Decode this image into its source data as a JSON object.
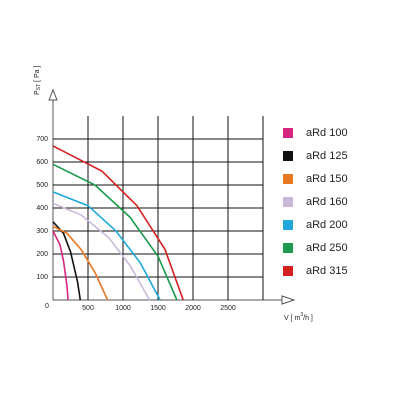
{
  "chart_data": {
    "type": "line",
    "y_label": {
      "main": "P",
      "sub": "ST",
      "unit": "[ Pa ]"
    },
    "x_label": {
      "main": "V [ m",
      "sup": "3",
      "unit": "/h ]"
    },
    "origin_label": "0",
    "xlim": [
      0,
      3000
    ],
    "ylim": [
      0,
      700
    ],
    "xticks": [
      500,
      1000,
      1500,
      2000,
      2500
    ],
    "xgrid": [
      500,
      1000,
      1500,
      2000,
      2500,
      3000
    ],
    "yticks": [
      100,
      200,
      300,
      400,
      500,
      600,
      700
    ],
    "grid": true,
    "series": [
      {
        "name": "aRd 100",
        "color": "#d6267f",
        "x": [
          0,
          100,
          150,
          200,
          215
        ],
        "values": [
          300,
          240,
          170,
          60,
          0
        ]
      },
      {
        "name": "aRd 125",
        "color": "#111111",
        "x": [
          0,
          150,
          250,
          350,
          390
        ],
        "values": [
          340,
          290,
          210,
          80,
          0
        ]
      },
      {
        "name": "aRd 150",
        "color": "#e87722",
        "x": [
          0,
          200,
          400,
          600,
          780
        ],
        "values": [
          320,
          290,
          220,
          120,
          0
        ]
      },
      {
        "name": "aRd 160",
        "color": "#c9b8d8",
        "x": [
          0,
          400,
          800,
          1100,
          1380
        ],
        "values": [
          420,
          370,
          270,
          150,
          0
        ]
      },
      {
        "name": "aRd 200",
        "color": "#1fa8dc",
        "x": [
          0,
          500,
          900,
          1250,
          1530
        ],
        "values": [
          470,
          410,
          300,
          160,
          0
        ]
      },
      {
        "name": "aRd 250",
        "color": "#1a9a4a",
        "x": [
          0,
          600,
          1100,
          1500,
          1770
        ],
        "values": [
          590,
          500,
          360,
          190,
          0
        ]
      },
      {
        "name": "aRd 315",
        "color": "#d42020",
        "x": [
          0,
          700,
          1200,
          1600,
          1860
        ],
        "values": [
          670,
          560,
          410,
          220,
          0
        ]
      }
    ]
  }
}
